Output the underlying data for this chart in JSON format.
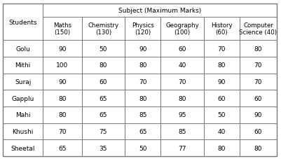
{
  "students": [
    "Golu",
    "Mithi",
    "Suraj",
    "Gapplu",
    "Mahi",
    "Khushi",
    "Sheetal"
  ],
  "subjects": [
    "Maths\n(150)",
    "Chemistry\n(130)",
    "Physics\n(120)",
    "Geography\n(100)",
    "History\n(60)",
    "Computer\nScience (40)"
  ],
  "data": [
    [
      90,
      50,
      90,
      60,
      70,
      80
    ],
    [
      100,
      80,
      80,
      40,
      80,
      70
    ],
    [
      90,
      60,
      70,
      70,
      90,
      70
    ],
    [
      80,
      65,
      80,
      80,
      60,
      60
    ],
    [
      80,
      65,
      85,
      95,
      50,
      90
    ],
    [
      70,
      75,
      65,
      85,
      40,
      60
    ],
    [
      65,
      35,
      50,
      77,
      80,
      80
    ]
  ],
  "header_main": "Subject (Maximum Marks)",
  "col_header": "Students",
  "bg_color": "#ffffff",
  "grid_color": "#777777",
  "text_color": "#000000",
  "fontsize": 6.5,
  "fig_width": 4.01,
  "fig_height": 2.28,
  "dpi": 100
}
